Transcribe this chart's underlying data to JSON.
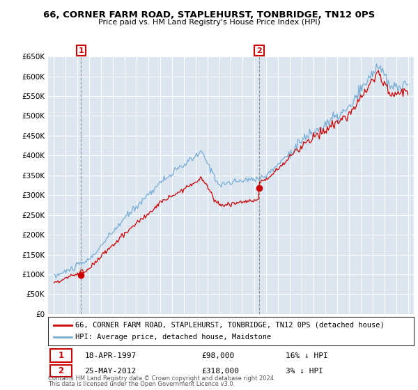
{
  "title1": "66, CORNER FARM ROAD, STAPLEHURST, TONBRIDGE, TN12 0PS",
  "title2": "Price paid vs. HM Land Registry's House Price Index (HPI)",
  "legend_line1": "66, CORNER FARM ROAD, STAPLEHURST, TONBRIDGE, TN12 0PS (detached house)",
  "legend_line2": "HPI: Average price, detached house, Maidstone",
  "footnote1": "Contains HM Land Registry data © Crown copyright and database right 2024.",
  "footnote2": "This data is licensed under the Open Government Licence v3.0.",
  "sale1_date": "18-APR-1997",
  "sale1_price": "£98,000",
  "sale1_hpi": "16% ↓ HPI",
  "sale2_date": "25-MAY-2012",
  "sale2_price": "£318,000",
  "sale2_hpi": "3% ↓ HPI",
  "sale1_x": 1997.3,
  "sale2_x": 2012.4,
  "sale1_y": 98000,
  "sale2_y": 318000,
  "red_color": "#cc0000",
  "blue_color": "#7aadd4",
  "vline_color": "#888888",
  "plot_bg": "#dce6f1",
  "grid_color": "#ffffff",
  "ylim": [
    0,
    650000
  ],
  "xlim": [
    1994.5,
    2025.5
  ],
  "yticks": [
    0,
    50000,
    100000,
    150000,
    200000,
    250000,
    300000,
    350000,
    400000,
    450000,
    500000,
    550000,
    600000,
    650000
  ]
}
